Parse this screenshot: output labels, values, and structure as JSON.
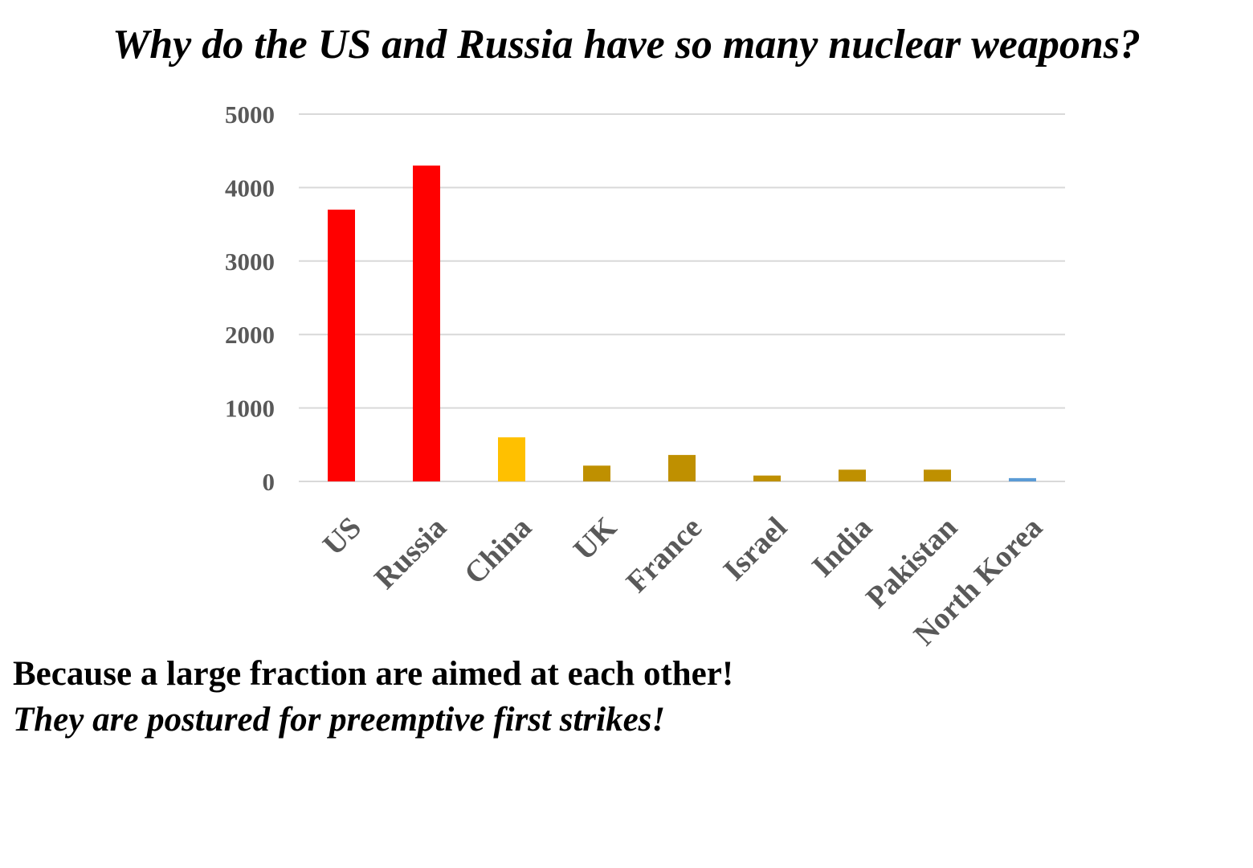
{
  "slide": {
    "title": "Why do the US and Russia have so many nuclear weapons?",
    "answer": "Because a large fraction are aimed at each other!",
    "subanswer": "They are postured for preemptive first strikes!"
  },
  "colors": {
    "gridline": "#d9d9d9",
    "tick_text": "#595959",
    "text": "#000000"
  },
  "chart_data": {
    "type": "bar",
    "title": "",
    "xlabel": "",
    "ylabel": "",
    "ylim": [
      0,
      5000
    ],
    "yticks": [
      0,
      1000,
      2000,
      3000,
      4000,
      5000
    ],
    "grid": true,
    "legend": "none",
    "categories": [
      "US",
      "Russia",
      "China",
      "UK",
      "France",
      "Israel",
      "India",
      "Pakistan",
      "North Korea"
    ],
    "values": [
      3700,
      4300,
      600,
      215,
      360,
      80,
      160,
      160,
      45
    ],
    "bar_colors": [
      "#ff0000",
      "#ff0000",
      "#ffc000",
      "#bf9000",
      "#bf9000",
      "#bf9000",
      "#bf9000",
      "#bf9000",
      "#5b9bd5"
    ]
  }
}
